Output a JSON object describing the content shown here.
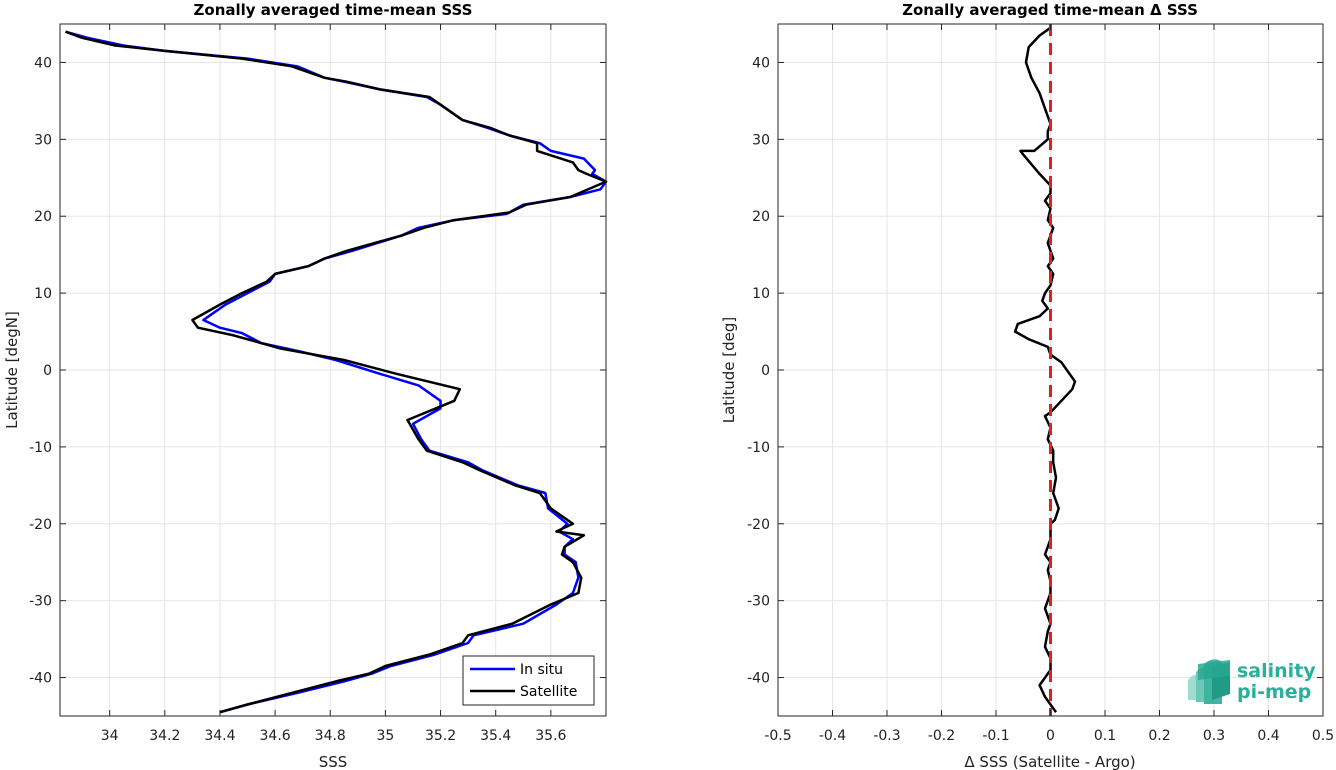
{
  "colors": {
    "in_situ": "#0000ff",
    "satellite": "#000000",
    "zero_line": "#e0201a",
    "logo": "#2ab09a"
  },
  "logo": {
    "line1": "salinity",
    "line2": "pi-mep"
  },
  "chart_data": [
    {
      "type": "line",
      "title": "Zonally averaged time-mean SSS",
      "xlabel": "SSS",
      "ylabel": "Latitude [degN]",
      "xlim": [
        33.82,
        35.8
      ],
      "ylim": [
        -45,
        45
      ],
      "xticks": [
        34,
        34.2,
        34.4,
        34.6,
        34.8,
        35,
        35.2,
        35.4,
        35.6
      ],
      "xtick_labels": [
        "34",
        "34.2",
        "34.4",
        "34.6",
        "34.8",
        "35",
        "35.2",
        "35.4",
        "35.6"
      ],
      "yticks": [
        -40,
        -30,
        -20,
        -10,
        0,
        10,
        20,
        30,
        40
      ],
      "ytick_labels": [
        "-40",
        "-30",
        "-20",
        "-10",
        "0",
        "10",
        "20",
        "30",
        "40"
      ],
      "grid": true,
      "legend": "bottom-right",
      "series": [
        {
          "name": "In situ",
          "color": "#0000ff",
          "points": [
            [
              34.4,
              -44.5
            ],
            [
              34.5,
              -43.5
            ],
            [
              34.68,
              -42
            ],
            [
              34.85,
              -40.5
            ],
            [
              34.95,
              -39.5
            ],
            [
              35.02,
              -38.5
            ],
            [
              35.18,
              -37
            ],
            [
              35.3,
              -35.5
            ],
            [
              35.32,
              -34.5
            ],
            [
              35.5,
              -33
            ],
            [
              35.62,
              -30.5
            ],
            [
              35.68,
              -29
            ],
            [
              35.7,
              -27
            ],
            [
              35.69,
              -25
            ],
            [
              35.65,
              -24
            ],
            [
              35.65,
              -23
            ],
            [
              35.68,
              -22
            ],
            [
              35.63,
              -21
            ],
            [
              35.66,
              -20
            ],
            [
              35.59,
              -18
            ],
            [
              35.58,
              -16
            ],
            [
              35.48,
              -15
            ],
            [
              35.35,
              -13
            ],
            [
              35.3,
              -12
            ],
            [
              35.16,
              -10.5
            ],
            [
              35.13,
              -9
            ],
            [
              35.1,
              -7
            ],
            [
              35.2,
              -5
            ],
            [
              35.2,
              -4
            ],
            [
              35.12,
              -2
            ],
            [
              34.98,
              -0.5
            ],
            [
              34.82,
              1.3
            ],
            [
              34.68,
              2.5
            ],
            [
              34.55,
              3.5
            ],
            [
              34.48,
              4.8
            ],
            [
              34.4,
              5.5
            ],
            [
              34.34,
              6.5
            ],
            [
              34.38,
              7.5
            ],
            [
              34.42,
              8.5
            ],
            [
              34.5,
              10
            ],
            [
              34.58,
              11.5
            ],
            [
              34.6,
              12.5
            ],
            [
              34.72,
              13.5
            ],
            [
              34.78,
              14.5
            ],
            [
              34.88,
              15.5
            ],
            [
              34.97,
              16.5
            ],
            [
              35.06,
              17.5
            ],
            [
              35.12,
              18.5
            ],
            [
              35.25,
              19.5
            ],
            [
              35.44,
              20.3
            ],
            [
              35.5,
              21.5
            ],
            [
              35.67,
              22.5
            ],
            [
              35.78,
              23.5
            ],
            [
              35.8,
              24.5
            ],
            [
              35.75,
              25.5
            ],
            [
              35.76,
              26
            ],
            [
              35.72,
              27.5
            ],
            [
              35.6,
              28.5
            ],
            [
              35.56,
              29.5
            ],
            [
              35.45,
              30.5
            ],
            [
              35.37,
              31.5
            ],
            [
              35.28,
              32.5
            ],
            [
              35.2,
              34.5
            ],
            [
              35.15,
              35.5
            ],
            [
              34.98,
              36.5
            ],
            [
              34.85,
              37.5
            ],
            [
              34.78,
              38
            ],
            [
              34.68,
              39.5
            ],
            [
              34.5,
              40.5
            ],
            [
              34.2,
              41.5
            ],
            [
              34.05,
              42.2
            ],
            [
              33.92,
              43.2
            ],
            [
              33.84,
              44
            ]
          ]
        },
        {
          "name": "Satellite",
          "color": "#000000",
          "points": [
            [
              34.4,
              -44.5
            ],
            [
              34.5,
              -43.5
            ],
            [
              34.66,
              -42
            ],
            [
              34.82,
              -40.5
            ],
            [
              34.94,
              -39.5
            ],
            [
              35.0,
              -38.5
            ],
            [
              35.16,
              -37
            ],
            [
              35.28,
              -35.5
            ],
            [
              35.3,
              -34.5
            ],
            [
              35.46,
              -33
            ],
            [
              35.6,
              -30.5
            ],
            [
              35.7,
              -29
            ],
            [
              35.71,
              -27
            ],
            [
              35.68,
              -25
            ],
            [
              35.64,
              -24
            ],
            [
              35.65,
              -23
            ],
            [
              35.72,
              -21.5
            ],
            [
              35.62,
              -21
            ],
            [
              35.68,
              -20
            ],
            [
              35.6,
              -18
            ],
            [
              35.56,
              -16
            ],
            [
              35.47,
              -15
            ],
            [
              35.34,
              -13
            ],
            [
              35.28,
              -12
            ],
            [
              35.15,
              -10.5
            ],
            [
              35.12,
              -9
            ],
            [
              35.08,
              -6.5
            ],
            [
              35.25,
              -4
            ],
            [
              35.27,
              -2.5
            ],
            [
              35.04,
              -0.5
            ],
            [
              34.85,
              1.3
            ],
            [
              34.62,
              2.8
            ],
            [
              34.45,
              4.5
            ],
            [
              34.32,
              5.5
            ],
            [
              34.3,
              6.5
            ],
            [
              34.4,
              8.5
            ],
            [
              34.48,
              10
            ],
            [
              34.57,
              11.5
            ],
            [
              34.6,
              12.5
            ],
            [
              34.72,
              13.5
            ],
            [
              34.78,
              14.5
            ],
            [
              34.86,
              15.5
            ],
            [
              34.96,
              16.5
            ],
            [
              35.06,
              17.5
            ],
            [
              35.14,
              18.5
            ],
            [
              35.25,
              19.5
            ],
            [
              35.45,
              20.5
            ],
            [
              35.51,
              21.5
            ],
            [
              35.67,
              22.5
            ],
            [
              35.8,
              24.5
            ],
            [
              35.73,
              25.5
            ],
            [
              35.7,
              26
            ],
            [
              35.68,
              27
            ],
            [
              35.55,
              28.5
            ],
            [
              35.55,
              29.5
            ],
            [
              35.45,
              30.5
            ],
            [
              35.38,
              31.5
            ],
            [
              35.28,
              32.5
            ],
            [
              35.2,
              34.5
            ],
            [
              35.16,
              35.5
            ],
            [
              34.98,
              36.5
            ],
            [
              34.86,
              37.5
            ],
            [
              34.78,
              38
            ],
            [
              34.66,
              39.5
            ],
            [
              34.48,
              40.5
            ],
            [
              34.2,
              41.5
            ],
            [
              34.02,
              42.2
            ],
            [
              33.9,
              43.2
            ],
            [
              33.84,
              44
            ]
          ]
        }
      ]
    },
    {
      "type": "line",
      "title": "Zonally averaged time-mean Δ SSS",
      "xlabel": "Δ SSS (Satellite - Argo)",
      "ylabel": "Latitude [deg]",
      "xlim": [
        -0.5,
        0.5
      ],
      "ylim": [
        -45,
        45
      ],
      "xticks": [
        -0.5,
        -0.4,
        -0.3,
        -0.2,
        -0.1,
        0,
        0.1,
        0.2,
        0.3,
        0.4,
        0.5
      ],
      "xtick_labels": [
        "-0.5",
        "-0.4",
        "-0.3",
        "-0.2",
        "-0.1",
        "0",
        "0.1",
        "0.2",
        "0.3",
        "0.4",
        "0.5"
      ],
      "yticks": [
        -40,
        -30,
        -20,
        -10,
        0,
        10,
        20,
        30,
        40
      ],
      "ytick_labels": [
        "-40",
        "-30",
        "-20",
        "-10",
        "0",
        "10",
        "20",
        "30",
        "40"
      ],
      "grid": true,
      "series": [
        {
          "color": "#000000",
          "points": [
            [
              0.01,
              -44.5
            ],
            [
              0.0,
              -43.5
            ],
            [
              -0.01,
              -42.5
            ],
            [
              -0.02,
              -41
            ],
            [
              -0.01,
              -40
            ],
            [
              0.0,
              -39
            ],
            [
              0.0,
              -37.5
            ],
            [
              -0.01,
              -36
            ],
            [
              -0.005,
              -34
            ],
            [
              0.0,
              -33
            ],
            [
              -0.01,
              -31
            ],
            [
              -0.005,
              -30
            ],
            [
              0.0,
              -29
            ],
            [
              0.0,
              -27.5
            ],
            [
              -0.005,
              -26
            ],
            [
              0.0,
              -25
            ],
            [
              -0.01,
              -24
            ],
            [
              0.0,
              -22
            ],
            [
              0.0,
              -20
            ],
            [
              0.008,
              -19.5
            ],
            [
              0.015,
              -18
            ],
            [
              0.005,
              -16
            ],
            [
              0.01,
              -14
            ],
            [
              0.005,
              -12
            ],
            [
              0.005,
              -10.5
            ],
            [
              -0.005,
              -9
            ],
            [
              0.0,
              -7.5
            ],
            [
              -0.01,
              -6
            ],
            [
              0.0,
              -5.5
            ],
            [
              0.02,
              -4
            ],
            [
              0.04,
              -2.5
            ],
            [
              0.045,
              -1.5
            ],
            [
              0.03,
              0
            ],
            [
              0.02,
              1
            ],
            [
              0.0,
              2
            ],
            [
              -0.005,
              3
            ],
            [
              -0.04,
              4
            ],
            [
              -0.065,
              5
            ],
            [
              -0.06,
              6
            ],
            [
              -0.02,
              7
            ],
            [
              -0.005,
              8
            ],
            [
              -0.015,
              9
            ],
            [
              -0.01,
              10
            ],
            [
              0.0,
              11
            ],
            [
              0.005,
              12.5
            ],
            [
              -0.005,
              13.5
            ],
            [
              0.005,
              14.5
            ],
            [
              0.0,
              15.5
            ],
            [
              -0.005,
              16.5
            ],
            [
              0.0,
              17.5
            ],
            [
              0.005,
              18.5
            ],
            [
              -0.005,
              19.5
            ],
            [
              0.0,
              21
            ],
            [
              -0.01,
              22
            ],
            [
              0.0,
              23
            ],
            [
              0.0,
              24
            ],
            [
              -0.02,
              25.5
            ],
            [
              -0.05,
              28
            ],
            [
              -0.055,
              28.5
            ],
            [
              -0.03,
              28.5
            ],
            [
              -0.005,
              30
            ],
            [
              -0.005,
              31
            ],
            [
              0.0,
              32
            ],
            [
              -0.01,
              34
            ],
            [
              -0.02,
              36
            ],
            [
              -0.035,
              38
            ],
            [
              -0.045,
              40
            ],
            [
              -0.04,
              42
            ],
            [
              -0.02,
              43.5
            ],
            [
              0.0,
              44.5
            ]
          ]
        }
      ],
      "reference_line": {
        "x": 0,
        "style": "dashed",
        "color": "#e0201a"
      }
    }
  ]
}
